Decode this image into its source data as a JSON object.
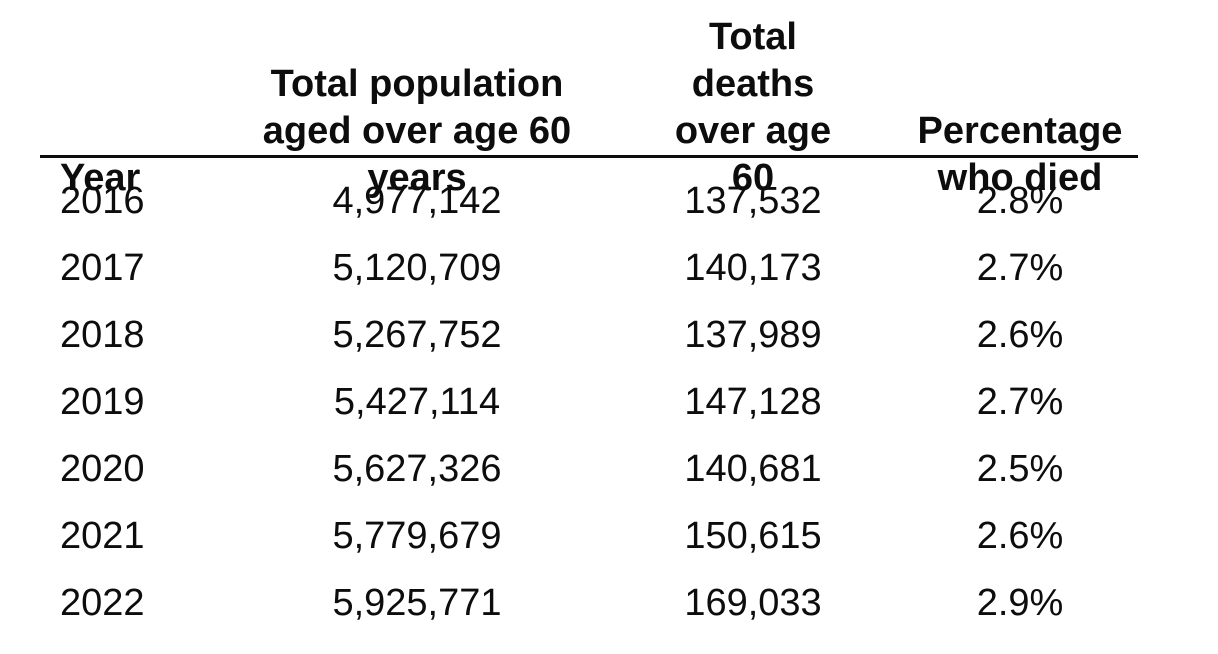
{
  "table": {
    "columns": [
      {
        "id": "year",
        "lines": [
          "Year"
        ]
      },
      {
        "id": "population",
        "lines": [
          "Total population",
          "aged over age 60",
          "years"
        ]
      },
      {
        "id": "deaths",
        "lines": [
          "Total deaths",
          "over age 60"
        ]
      },
      {
        "id": "percentage",
        "lines": [
          "Percentage",
          "who died"
        ]
      }
    ],
    "rows": [
      [
        "2016",
        "4,977,142",
        "137,532",
        "2.8%"
      ],
      [
        "2017",
        "5,120,709",
        "140,173",
        "2.7%"
      ],
      [
        "2018",
        "5,267,752",
        "137,989",
        "2.6%"
      ],
      [
        "2019",
        "5,427,114",
        "147,128",
        "2.7%"
      ],
      [
        "2020",
        "5,627,326",
        "140,681",
        "2.5%"
      ],
      [
        "2021",
        "5,779,679",
        "150,615",
        "2.6%"
      ],
      [
        "2022",
        "5,925,771",
        "169,033",
        "2.9%"
      ]
    ]
  },
  "chart_data": {
    "type": "table",
    "columns": [
      "Year",
      "Total population aged over age 60 years",
      "Total deaths over age 60",
      "Percentage who died"
    ],
    "rows": [
      {
        "year": 2016,
        "population_over_60": 4977142,
        "deaths_over_60": 137532,
        "percentage_died": "2.8%"
      },
      {
        "year": 2017,
        "population_over_60": 5120709,
        "deaths_over_60": 140173,
        "percentage_died": "2.7%"
      },
      {
        "year": 2018,
        "population_over_60": 5267752,
        "deaths_over_60": 137989,
        "percentage_died": "2.6%"
      },
      {
        "year": 2019,
        "population_over_60": 5427114,
        "deaths_over_60": 147128,
        "percentage_died": "2.7%"
      },
      {
        "year": 2020,
        "population_over_60": 5627326,
        "deaths_over_60": 140681,
        "percentage_died": "2.5%"
      },
      {
        "year": 2021,
        "population_over_60": 5779679,
        "deaths_over_60": 150615,
        "percentage_died": "2.6%"
      },
      {
        "year": 2022,
        "population_over_60": 5925771,
        "deaths_over_60": 169033,
        "percentage_died": "2.9%"
      }
    ]
  },
  "colors": {
    "text": "#0d0d0d",
    "background": "#ffffff",
    "divider": "#0d0d0d"
  }
}
